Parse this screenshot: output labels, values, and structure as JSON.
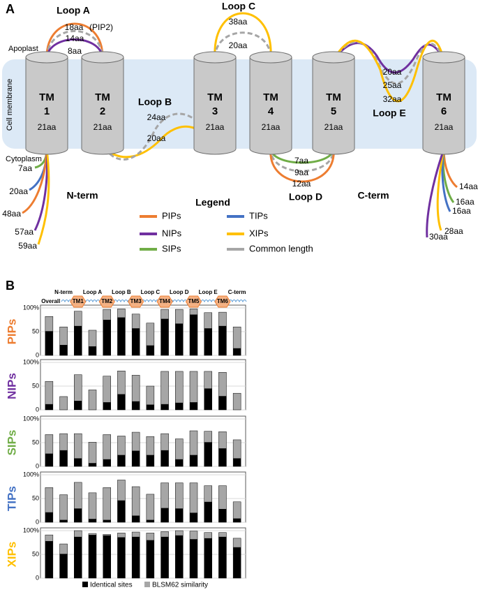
{
  "panel_a": {
    "label": "A",
    "apoplast": "Apoplast",
    "cytoplasm": "Cytoplasm",
    "membrane": "Cell membrane",
    "tm": [
      {
        "name": "TM",
        "number": "1",
        "length": "21aa"
      },
      {
        "name": "TM",
        "number": "2",
        "length": "21aa"
      },
      {
        "name": "TM",
        "number": "3",
        "length": "21aa"
      },
      {
        "name": "TM",
        "number": "4",
        "length": "21aa"
      },
      {
        "name": "TM",
        "number": "5",
        "length": "21aa"
      },
      {
        "name": "TM",
        "number": "6",
        "length": "21aa"
      }
    ],
    "loops": [
      {
        "name": "Loop A",
        "lengths": [
          "18aa",
          "14aa",
          "8aa"
        ],
        "note": "(PIP2)"
      },
      {
        "name": "Loop B",
        "lengths": [
          "24aa",
          "20aa"
        ]
      },
      {
        "name": "Loop C",
        "lengths": [
          "38aa",
          "20aa"
        ]
      },
      {
        "name": "Loop D",
        "lengths": [
          "7aa",
          "9aa",
          "12aa"
        ]
      },
      {
        "name": "Loop E",
        "lengths": [
          "20aa",
          "25aa",
          "32aa"
        ]
      },
      {
        "name": "N-term",
        "lengths": [
          "7aa",
          "20aa",
          "48aa",
          "57aa",
          "59aa"
        ]
      },
      {
        "name": "C-term",
        "lengths": [
          "14aa",
          "16aa",
          "16aa",
          "28aa",
          "30aa"
        ]
      }
    ],
    "legend": {
      "title": "Legend",
      "items": [
        {
          "name": "PIPs",
          "color": "#ed7d31"
        },
        {
          "name": "NIPs",
          "color": "#7030a0"
        },
        {
          "name": "SIPs",
          "color": "#70ad47"
        },
        {
          "name": "TIPs",
          "color": "#4472c4"
        },
        {
          "name": "XIPs",
          "color": "#ffc000"
        },
        {
          "name": "Common length",
          "color": "#a6a6a6"
        }
      ]
    }
  },
  "panel_b_label": "B",
  "chart_data": [
    {
      "type": "bar",
      "title": "PIPs",
      "color": "#ed7d31",
      "categories": [
        "Overall",
        "N-term",
        "TM1",
        "Loop A",
        "TM2",
        "Loop B",
        "TM3",
        "Loop C",
        "TM4",
        "Loop D",
        "TM5",
        "Loop E",
        "TM6",
        "C-term"
      ],
      "series": [
        {
          "color": "#000000",
          "values": [
            51,
            22,
            62,
            19,
            75,
            80,
            57,
            21,
            77,
            67,
            86,
            57,
            62,
            15
          ]
        },
        {
          "color": "#a6a6a6",
          "values": [
            82,
            60,
            93,
            53,
            97,
            98,
            87,
            68,
            97,
            97,
            98,
            90,
            91,
            60
          ]
        }
      ],
      "ylim": [
        0,
        100
      ],
      "yticks": [
        0,
        50,
        {
          "value": 100,
          "label": "100%"
        }
      ],
      "grid": true
    },
    {
      "type": "bar",
      "title": "NIPs",
      "color": "#7030a0",
      "series": [
        {
          "color": "#000000",
          "values": [
            12,
            0,
            19,
            0,
            16,
            33,
            18,
            11,
            12,
            15,
            16,
            45,
            29,
            0
          ]
        },
        {
          "color": "#a6a6a6",
          "values": [
            60,
            28,
            74,
            42,
            71,
            82,
            73,
            50,
            81,
            81,
            81,
            81,
            79,
            35
          ]
        }
      ],
      "ylim": [
        0,
        100
      ],
      "yticks": [
        0,
        50,
        {
          "value": 100,
          "label": "100%"
        }
      ],
      "grid": true
    },
    {
      "type": "bar",
      "title": "SIPs",
      "color": "#70ad47",
      "series": [
        {
          "color": "#000000",
          "values": [
            27,
            34,
            17,
            7,
            15,
            24,
            33,
            24,
            34,
            15,
            24,
            51,
            38,
            17
          ]
        },
        {
          "color": "#a6a6a6",
          "values": [
            67,
            69,
            69,
            51,
            67,
            64,
            72,
            63,
            69,
            58,
            75,
            74,
            73,
            56
          ]
        }
      ],
      "ylim": [
        0,
        100
      ],
      "yticks": [
        0,
        50,
        {
          "value": 100,
          "label": "100%"
        }
      ],
      "grid": true
    },
    {
      "type": "bar",
      "title": "TIPs",
      "color": "#4472c4",
      "series": [
        {
          "color": "#000000",
          "values": [
            21,
            5,
            29,
            7,
            5,
            46,
            14,
            5,
            30,
            29,
            20,
            43,
            28,
            8
          ]
        },
        {
          "color": "#a6a6a6",
          "values": [
            73,
            58,
            84,
            62,
            73,
            89,
            75,
            59,
            83,
            83,
            83,
            77,
            77,
            43
          ]
        }
      ],
      "ylim": [
        0,
        100
      ],
      "yticks": [
        0,
        50,
        {
          "value": 100,
          "label": "100%"
        }
      ],
      "grid": true
    },
    {
      "type": "bar",
      "title": "XIPs",
      "color": "#ffc000",
      "series": [
        {
          "name": "Identical sites",
          "color": "#000000",
          "values": [
            78,
            51,
            87,
            91,
            90,
            86,
            87,
            80,
            87,
            90,
            82,
            84,
            87,
            65
          ]
        },
        {
          "name": "BLSM62 similarity",
          "color": "#a6a6a6",
          "values": [
            91,
            72,
            100,
            94,
            92,
            95,
            97,
            95,
            98,
            100,
            99,
            96,
            96,
            84
          ]
        }
      ],
      "ylim": [
        0,
        100
      ],
      "yticks": [
        0,
        50,
        {
          "value": 100,
          "label": "100%"
        }
      ],
      "grid": true
    }
  ]
}
